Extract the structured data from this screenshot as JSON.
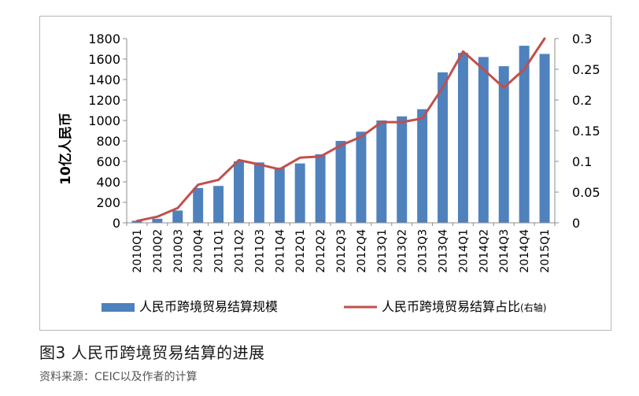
{
  "chart_data": {
    "type": "bar",
    "categories": [
      "2010Q1",
      "2010Q2",
      "2010Q3",
      "2010Q4",
      "2011Q1",
      "2011Q2",
      "2011Q3",
      "2011Q4",
      "2012Q1",
      "2012Q2",
      "2012Q3",
      "2012Q4",
      "2013Q1",
      "2013Q2",
      "2013Q3",
      "2013Q4",
      "2014Q1",
      "2014Q2",
      "2014Q3",
      "2014Q4",
      "2015Q1"
    ],
    "series": [
      {
        "name": "人民币跨境贸易结算规模",
        "kind": "bar",
        "axis": "left",
        "color": "#4f81bd",
        "values": [
          20,
          40,
          120,
          340,
          360,
          600,
          590,
          540,
          580,
          670,
          800,
          890,
          1000,
          1040,
          1110,
          1470,
          1660,
          1620,
          1530,
          1730,
          1650
        ]
      },
      {
        "name": "人民币跨境贸易结算占比",
        "legend_suffix": "(右轴)",
        "kind": "line",
        "axis": "right",
        "color": "#c0504d",
        "values": [
          0.003,
          0.01,
          0.024,
          0.062,
          0.07,
          0.102,
          0.095,
          0.087,
          0.106,
          0.108,
          0.126,
          0.14,
          0.164,
          0.164,
          0.17,
          0.22,
          0.279,
          0.25,
          0.22,
          0.25,
          0.3
        ]
      }
    ],
    "ylabel": "10亿人民币",
    "ylim": [
      0,
      1800
    ],
    "y_ticks": [
      "0",
      "200",
      "400",
      "600",
      "800",
      "1000",
      "1200",
      "1400",
      "1600",
      "1800"
    ],
    "y2lim": [
      0,
      0.3
    ],
    "y2_ticks": [
      "0",
      "0.05",
      "0.1",
      "0.15",
      "0.2",
      "0.25",
      "0.3"
    ],
    "grid": false,
    "legend_position": "bottom"
  },
  "caption": {
    "title": "图3  人民币跨境贸易结算的进展",
    "source": "资料来源：CEIC以及作者的计算"
  }
}
